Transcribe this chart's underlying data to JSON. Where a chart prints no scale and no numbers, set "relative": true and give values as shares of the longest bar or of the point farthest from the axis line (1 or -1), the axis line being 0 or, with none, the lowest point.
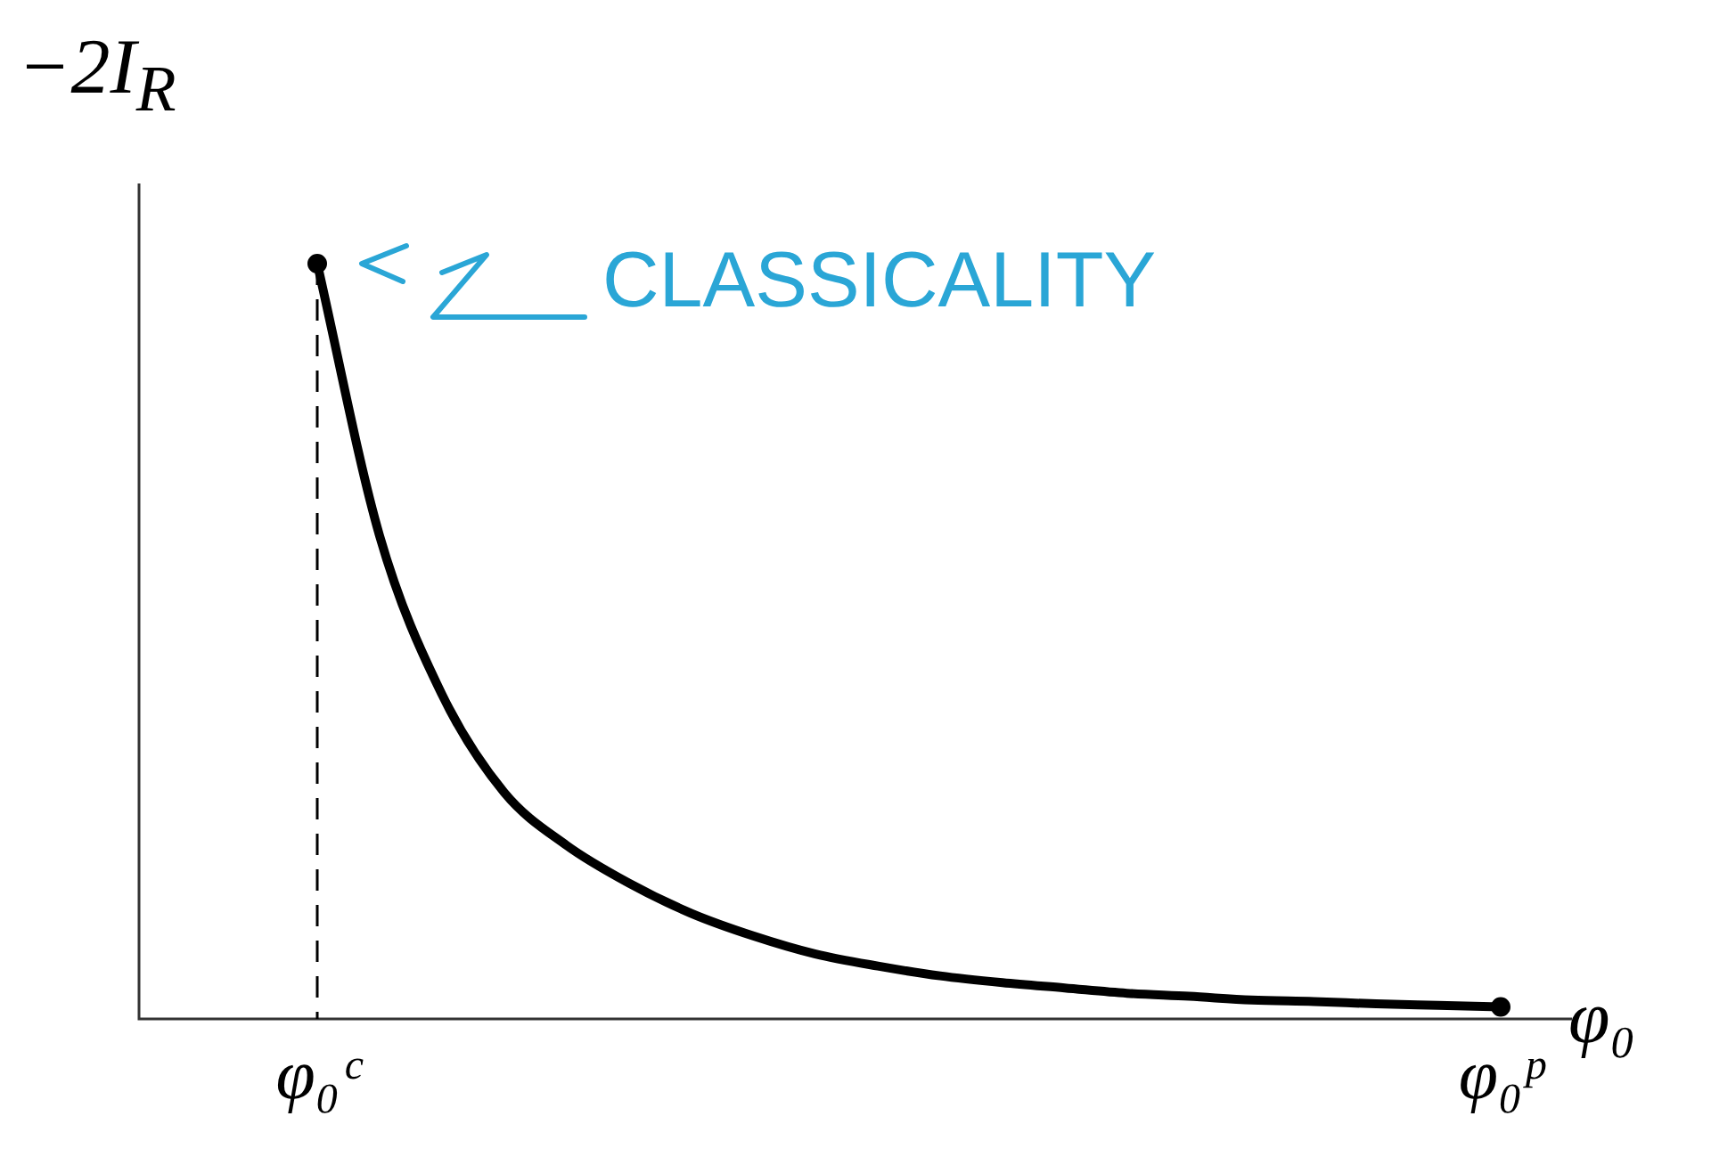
{
  "chart_data": {
    "type": "line",
    "relative": true,
    "xlabel": "φ₀",
    "ylabel": "−2I$_{R}$",
    "categories": [
      "φ₀ᶜ",
      null,
      null,
      null,
      null,
      null,
      null,
      null,
      null,
      null,
      null,
      null,
      null,
      null,
      null,
      null,
      null,
      null,
      null,
      "φ₀ᵖ"
    ],
    "series": [
      {
        "color": "#000000",
        "marker": "none",
        "values": [
          1.0,
          0.64,
          0.43,
          0.3,
          0.23,
          0.18,
          0.14,
          0.11,
          0.086,
          0.07,
          0.057,
          0.048,
          0.041,
          0.034,
          0.03,
          0.025,
          0.023,
          0.02,
          0.018,
          0.016
        ]
      },
      {
        "type": "scatter",
        "color": "#000000",
        "marker": "circle",
        "values": [
          1.0,
          null,
          null,
          null,
          null,
          null,
          null,
          null,
          null,
          null,
          null,
          null,
          null,
          null,
          null,
          null,
          null,
          null,
          null,
          0.016
        ]
      }
    ],
    "line_style": "solid",
    "grid": false,
    "legend": false,
    "ref_lines": [
      {
        "axis": "x",
        "value": "φ₀ᶜ",
        "line_style": "dashed",
        "color": "#000000"
      }
    ],
    "annotations": [
      "CLASSICALITY"
    ]
  }
}
